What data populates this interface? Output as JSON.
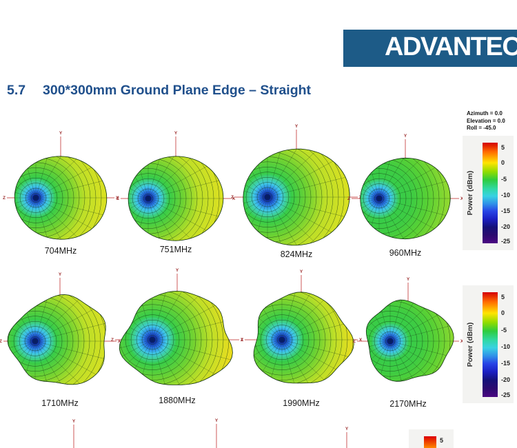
{
  "logo": {
    "text": "ADVANTECH"
  },
  "heading": {
    "section_number": "5.7",
    "title": "300*300mm Ground Plane Edge – Straight"
  },
  "view_annotation": {
    "azimuth": "Azimuth = 0.0",
    "elevation": "Elevation = 0.0",
    "roll": "Roll = -45.0"
  },
  "colorbar": {
    "label": "Power (dBm)",
    "ticks": [
      "5",
      "0",
      "-5",
      "-10",
      "-15",
      "-20",
      "-25"
    ]
  },
  "colorbar_partial": {
    "visible_tick": "5"
  },
  "axis_labels": {
    "x": "X",
    "y": "Y",
    "z": "Z"
  },
  "plots": [
    {
      "label": "704MHz"
    },
    {
      "label": "751MHz"
    },
    {
      "label": "824MHz"
    },
    {
      "label": "960MHz"
    },
    {
      "label": "1710MHz"
    },
    {
      "label": "1880MHz"
    },
    {
      "label": "1990MHz"
    },
    {
      "label": "2170MHz"
    }
  ],
  "figures": {
    "type": "3d-radiation-pattern",
    "unit": "dBm",
    "power_scale_ticks": [
      5,
      0,
      -5,
      -10,
      -15,
      -20,
      -25
    ],
    "frequencies_mhz": [
      704,
      751,
      824,
      960,
      1710,
      1880,
      1990,
      2170
    ]
  }
}
